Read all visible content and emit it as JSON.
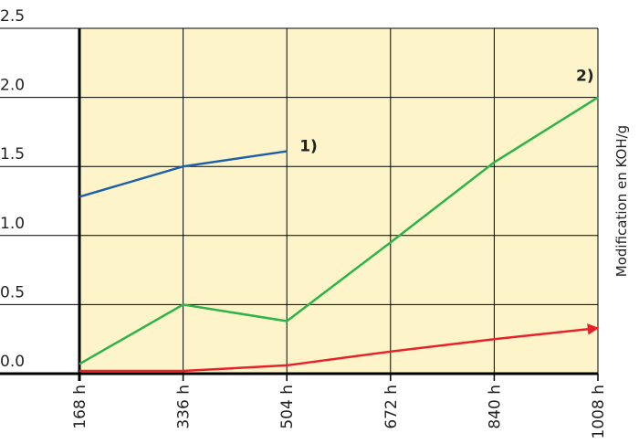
{
  "chart_data": {
    "type": "line",
    "categories": [
      "168 h",
      "336 h",
      "504 h",
      "672 h",
      "840 h",
      "1008 h"
    ],
    "series": [
      {
        "color": "#1f5fa8",
        "values": [
          1.28,
          1.5,
          1.61,
          null,
          null,
          null
        ]
      },
      {
        "color": "#2db34a",
        "values": [
          0.07,
          0.5,
          0.38,
          0.95,
          1.53,
          2.0
        ]
      },
      {
        "color": "#e8202a",
        "values": [
          0.02,
          0.02,
          0.06,
          0.16,
          0.25,
          0.33
        ]
      }
    ],
    "annotations": [
      "1)",
      "2)"
    ],
    "y_label": "Modification en KOH/g",
    "ylim": [
      0,
      2.5
    ],
    "yticks": [
      {
        "value": 0,
        "label": "0.0"
      },
      0.5,
      {
        "value": 1,
        "label": "1.0"
      },
      1.5,
      {
        "value": 2,
        "label": "2.0"
      },
      2.5
    ],
    "grid": true,
    "background": "#fdf5c9"
  }
}
